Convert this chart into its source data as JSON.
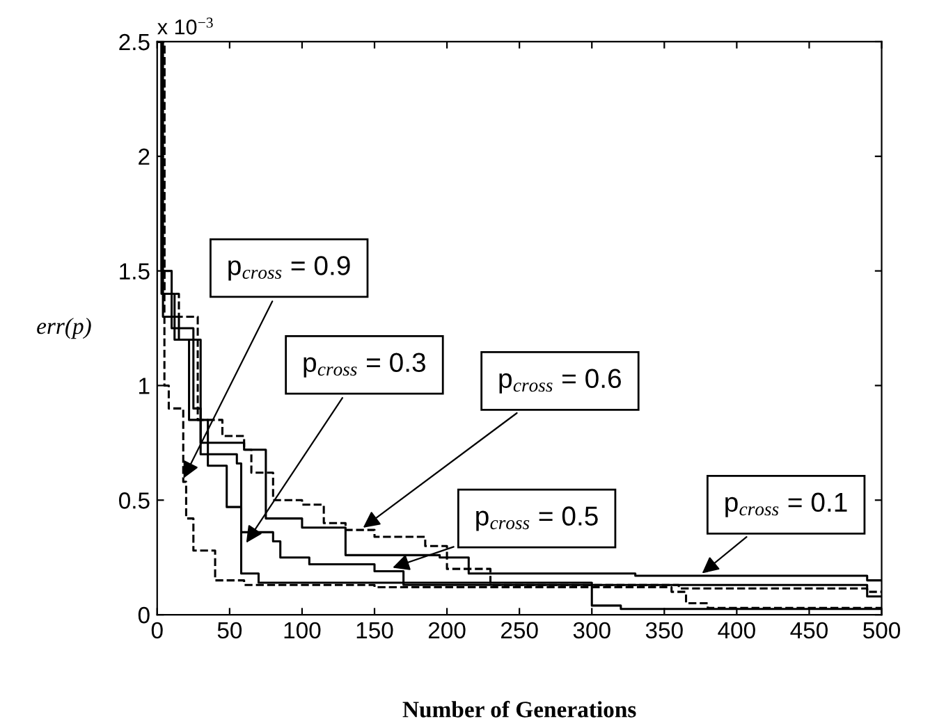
{
  "chart_data": {
    "type": "step",
    "xlabel": "Number of Generations",
    "ylabel": "err(p)",
    "xlim": [
      0,
      500
    ],
    "xticks": [
      0,
      50,
      100,
      150,
      200,
      250,
      300,
      350,
      400,
      450,
      500
    ],
    "ylim": [
      0,
      2.5
    ],
    "yticks": [
      0,
      0.5,
      1,
      1.5,
      2,
      2.5
    ],
    "grid": false,
    "legend": false,
    "series": [
      {
        "color": "#000000",
        "line_style": "solid",
        "x": [
          0,
          3,
          10,
          25,
          30,
          60,
          75,
          100,
          130,
          195,
          215,
          330,
          490,
          500
        ],
        "values": [
          2.5,
          1.5,
          1.25,
          0.9,
          0.75,
          0.72,
          0.42,
          0.38,
          0.26,
          0.25,
          0.18,
          0.17,
          0.15,
          0.15
        ]
      },
      {
        "color": "#000000",
        "line_style": "solid",
        "x": [
          0,
          4,
          15,
          22,
          35,
          48,
          58,
          70,
          300,
          320,
          500
        ],
        "values": [
          2.5,
          1.3,
          1.2,
          0.85,
          0.65,
          0.47,
          0.18,
          0.14,
          0.04,
          0.025,
          0.025
        ]
      },
      {
        "color": "#000000",
        "line_style": "solid",
        "x": [
          0,
          3,
          12,
          30,
          55,
          58,
          80,
          85,
          105,
          150,
          170,
          490,
          500
        ],
        "values": [
          2.5,
          1.4,
          1.2,
          0.7,
          0.66,
          0.36,
          0.32,
          0.25,
          0.22,
          0.19,
          0.13,
          0.08,
          0.08
        ]
      },
      {
        "color": "#000000",
        "line_style": "dashed",
        "x": [
          0,
          5,
          15,
          28,
          45,
          60,
          65,
          80,
          100,
          115,
          130,
          150,
          185,
          200,
          230,
          360,
          490,
          500
        ],
        "values": [
          2.5,
          1.4,
          1.3,
          0.85,
          0.78,
          0.72,
          0.62,
          0.5,
          0.48,
          0.4,
          0.37,
          0.34,
          0.3,
          0.2,
          0.13,
          0.115,
          0.1,
          0.1
        ]
      },
      {
        "color": "#000000",
        "line_style": "dashed",
        "x": [
          0,
          5,
          8,
          18,
          20,
          25,
          40,
          60,
          150,
          355,
          365,
          380,
          500
        ],
        "values": [
          2.5,
          1.0,
          0.9,
          0.58,
          0.42,
          0.28,
          0.15,
          0.13,
          0.12,
          0.1,
          0.05,
          0.03,
          0.03
        ]
      }
    ],
    "annotations": [
      "x 10$^{−3}$",
      {
        "text": "p$_{cross}$ = 0.9",
        "x": 17,
        "y": 0.58
      },
      {
        "text": "p$_{cross}$ = 0.3",
        "x": 60,
        "y": 0.3
      },
      {
        "text": "p$_{cross}$ = 0.6",
        "x": 140,
        "y": 0.37
      },
      {
        "text": "p$_{cross}$ = 0.5",
        "x": 160,
        "y": 0.2
      },
      {
        "text": "p$_{cross}$ = 0.1",
        "x": 374,
        "y": 0.17
      }
    ]
  }
}
